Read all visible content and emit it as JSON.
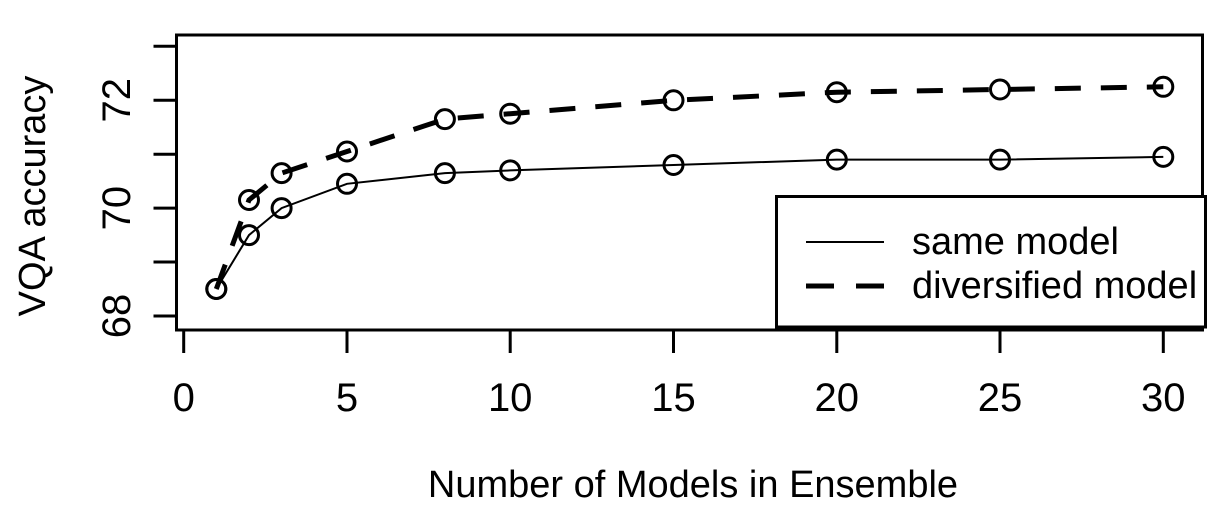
{
  "figure": {
    "background": "#ffffff",
    "foreground": "#000000"
  },
  "chart_data": {
    "type": "line",
    "title": "",
    "xlabel": "Number of Models in Ensemble",
    "ylabel": "VQA accuracy",
    "x": [
      1,
      2,
      3,
      5,
      8,
      10,
      15,
      20,
      25,
      30
    ],
    "series": [
      {
        "name": "same model",
        "line_style": "solid",
        "line_weight": "thin",
        "marker": "open-circle",
        "values": [
          68.5,
          69.5,
          70.0,
          70.45,
          70.65,
          70.7,
          70.8,
          70.9,
          70.9,
          70.95
        ]
      },
      {
        "name": "diversified model",
        "line_style": "dashed",
        "line_weight": "thick",
        "marker": "open-circle",
        "values": [
          68.5,
          70.15,
          70.65,
          71.05,
          71.65,
          71.75,
          72.0,
          72.15,
          72.2,
          72.25
        ]
      }
    ],
    "x_ticks": [
      0,
      5,
      10,
      15,
      20,
      25,
      30
    ],
    "y_minor_ticks": [
      68,
      69,
      70,
      71,
      72,
      73
    ],
    "y_labeled_ticks": [
      68,
      70,
      72
    ],
    "xlim": [
      -0.22,
      31.2
    ],
    "ylim": [
      67.74,
      73.21
    ],
    "grid": false,
    "legend": {
      "position": "bottom-right",
      "entries": [
        "same model",
        "diversified model"
      ]
    }
  }
}
